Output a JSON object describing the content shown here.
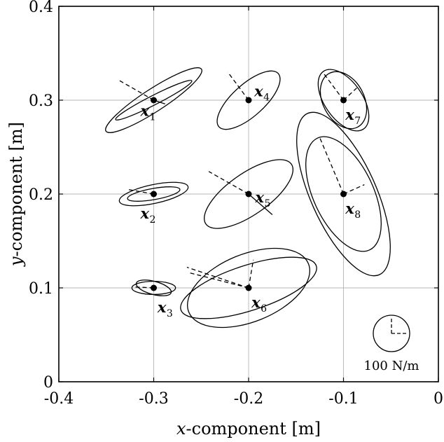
{
  "chart_data": {
    "type": "scatter",
    "title": "",
    "xlabel": {
      "var": "x",
      "rest": "-component [m]"
    },
    "ylabel": {
      "var": "y",
      "rest": "-component [m]"
    },
    "xlim": [
      -0.4,
      0
    ],
    "ylim": [
      0,
      0.4
    ],
    "xticks": [
      -0.4,
      -0.3,
      -0.2,
      -0.1,
      0
    ],
    "xtick_labels": [
      "-0.4",
      "-0.3",
      "-0.2",
      "-0.1",
      "0"
    ],
    "yticks": [
      0,
      0.1,
      0.2,
      0.3,
      0.4
    ],
    "ytick_labels": [
      "0",
      "0.1",
      "0.2",
      "0.3",
      "0.4"
    ],
    "grid": true,
    "scale_reference": {
      "label": "100 N/m",
      "position": "bottom-right"
    },
    "points": [
      {
        "name": "x",
        "sub": "1",
        "x": -0.3,
        "y": 0.3,
        "label_pos": [
          -0.314,
          0.289
        ],
        "ellipses": [
          {
            "rx": 0.045,
            "ry": 0.005,
            "angle": -27
          },
          {
            "rx": 0.06,
            "ry": 0.012,
            "angle": -33
          }
        ],
        "lines": [
          {
            "dx": -0.038,
            "dy": 0.022,
            "style": "dashed"
          },
          {
            "dx": 0.012,
            "dy": -0.004,
            "style": "solid"
          }
        ]
      },
      {
        "name": "x",
        "sub": "2",
        "x": -0.3,
        "y": 0.2,
        "label_pos": [
          -0.314,
          0.18
        ],
        "ellipses": [
          {
            "rx": 0.028,
            "ry": 0.006,
            "angle": -10
          },
          {
            "rx": 0.037,
            "ry": 0.01,
            "angle": -12
          }
        ],
        "lines": [
          {
            "dx": -0.028,
            "dy": 0.005,
            "style": "dashed"
          }
        ]
      },
      {
        "name": "x",
        "sub": "3",
        "x": -0.3,
        "y": 0.1,
        "label_pos": [
          -0.296,
          0.08
        ],
        "ellipses": [
          {
            "rx": 0.019,
            "ry": 0.007,
            "angle": 15
          },
          {
            "rx": 0.023,
            "ry": 0.007,
            "angle": 0
          }
        ],
        "lines": [
          {
            "dx": -0.02,
            "dy": 0.001,
            "style": "dashed"
          }
        ]
      },
      {
        "name": "x",
        "sub": "4",
        "x": -0.2,
        "y": 0.3,
        "label_pos": [
          -0.194,
          0.31
        ],
        "ellipses": [
          {
            "rx": 0.042,
            "ry": 0.017,
            "angle": -42
          }
        ],
        "lines": [
          {
            "dx": -0.022,
            "dy": 0.03,
            "style": "dashed"
          }
        ]
      },
      {
        "name": "x",
        "sub": "5",
        "x": -0.2,
        "y": 0.2,
        "label_pos": [
          -0.193,
          0.197
        ],
        "ellipses": [
          {
            "rx": 0.055,
            "ry": 0.022,
            "angle": -35
          }
        ],
        "lines": [
          {
            "dx": -0.042,
            "dy": 0.024,
            "style": "dashed"
          },
          {
            "dx": 0.025,
            "dy": -0.022,
            "style": "solid"
          }
        ]
      },
      {
        "name": "x",
        "sub": "6",
        "x": -0.2,
        "y": 0.1,
        "label_pos": [
          -0.197,
          0.085
        ],
        "ellipses": [
          {
            "rx": 0.075,
            "ry": 0.024,
            "angle": -18
          },
          {
            "rx": 0.068,
            "ry": 0.036,
            "angle": -22
          }
        ],
        "lines": [
          {
            "dx": -0.065,
            "dy": 0.022,
            "style": "dashed"
          },
          {
            "dx": -0.062,
            "dy": 0.016,
            "style": "dashed"
          },
          {
            "dx": 0.005,
            "dy": 0.03,
            "style": "dashed"
          }
        ]
      },
      {
        "name": "x",
        "sub": "7",
        "x": -0.1,
        "y": 0.3,
        "label_pos": [
          -0.098,
          0.285
        ],
        "ellipses": [
          {
            "rx": 0.037,
            "ry": 0.02,
            "angle": 55
          },
          {
            "rx": 0.032,
            "ry": 0.022,
            "angle": 62
          }
        ],
        "lines": [
          {
            "dx": -0.022,
            "dy": 0.03,
            "style": "dashed"
          },
          {
            "dx": 0.014,
            "dy": 0.013,
            "style": "dashed"
          }
        ]
      },
      {
        "name": "x",
        "sub": "8",
        "x": -0.1,
        "y": 0.2,
        "label_pos": [
          -0.098,
          0.185
        ],
        "ellipses": [
          {
            "rx": 0.065,
            "ry": 0.032,
            "angle": 65
          },
          {
            "rx": 0.093,
            "ry": 0.035,
            "angle": 66
          }
        ],
        "lines": [
          {
            "dx": -0.025,
            "dy": 0.06,
            "style": "dashed"
          },
          {
            "dx": 0.022,
            "dy": 0.01,
            "style": "dashed"
          }
        ]
      }
    ]
  }
}
